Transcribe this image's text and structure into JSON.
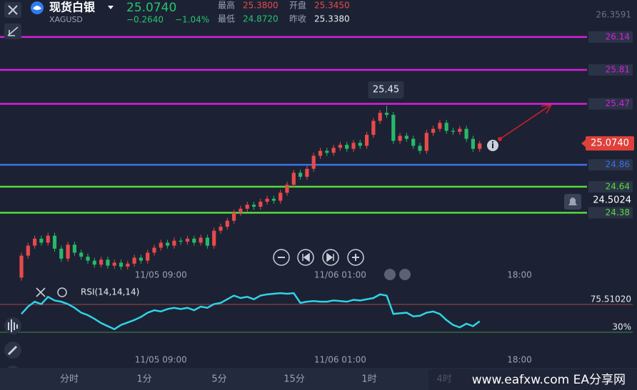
{
  "header": {
    "title": "现货白银",
    "symbol": "XAGUSD",
    "price": "25.0740",
    "change": "−0.2640",
    "change_pct": "−1.04%",
    "stats": [
      {
        "label": "最高",
        "value": "25.3800"
      },
      {
        "label": "开盘",
        "value": "25.3450"
      },
      {
        "label": "最低",
        "value": "24.8720"
      },
      {
        "label": "昨收",
        "value": "25.3380"
      }
    ]
  },
  "chart_data": {
    "type": "candlestick",
    "up_color": "#e84a4a",
    "down_color": "#27b86a",
    "ylim": [
      23.69,
      26.51
    ],
    "yticks": [
      26.3591
    ],
    "levels": [
      {
        "value": 26.14,
        "color": "#d91ee0"
      },
      {
        "value": 25.81,
        "color": "#d91ee0"
      },
      {
        "value": 25.47,
        "color": "#d91ee0"
      },
      {
        "value": 24.86,
        "color": "#3b72e8"
      },
      {
        "value": 24.64,
        "color": "#58dc3c"
      },
      {
        "value": 24.38,
        "color": "#58dc3c"
      }
    ],
    "last_price": {
      "value": 25.074,
      "label": "25.0740"
    },
    "alert_price": 24.5024,
    "xticks": [
      {
        "value": 21,
        "label": "11/05 09:00"
      },
      {
        "value": 48,
        "label": "11/06 01:00"
      },
      {
        "value": 75,
        "label": "18:00"
      }
    ],
    "open": [
      23.73,
      23.95,
      24.05,
      24.12,
      24.08,
      24.15,
      24.02,
      23.92,
      24.06,
      23.98,
      23.94,
      23.9,
      23.86,
      23.91,
      23.85,
      23.88,
      23.84,
      23.87,
      23.93,
      23.9,
      23.98,
      24.03,
      24.08,
      24.05,
      24.1,
      24.09,
      24.12,
      24.08,
      24.13,
      24.05,
      24.2,
      24.24,
      24.3,
      24.38,
      24.42,
      24.46,
      24.44,
      24.49,
      24.52,
      24.5,
      24.58,
      24.66,
      24.78,
      24.74,
      24.82,
      24.95,
      25.0,
      24.98,
      25.03,
      25.06,
      25.02,
      25.08,
      25.05,
      25.16,
      25.3,
      25.38,
      25.36,
      25.1,
      25.15,
      25.12,
      25.05,
      25.0,
      25.18,
      25.22,
      25.28,
      25.2,
      25.19,
      25.22,
      25.12,
      25.02
    ],
    "high": [
      23.98,
      24.08,
      24.15,
      24.15,
      24.18,
      24.18,
      24.05,
      24.09,
      24.09,
      24.01,
      23.97,
      23.93,
      23.94,
      23.94,
      23.91,
      23.91,
      23.9,
      23.96,
      23.96,
      24.01,
      24.06,
      24.11,
      24.11,
      24.13,
      24.13,
      24.15,
      24.15,
      24.16,
      24.16,
      24.23,
      24.27,
      24.33,
      24.41,
      24.45,
      24.49,
      24.49,
      24.52,
      24.55,
      24.55,
      24.61,
      24.69,
      24.81,
      24.81,
      24.85,
      24.98,
      25.03,
      25.03,
      25.06,
      25.09,
      25.09,
      25.11,
      25.11,
      25.19,
      25.33,
      25.41,
      25.45,
      25.39,
      25.18,
      25.18,
      25.15,
      25.08,
      25.21,
      25.25,
      25.31,
      25.31,
      25.23,
      25.25,
      25.25,
      25.15,
      25.1
    ],
    "low": [
      23.7,
      23.92,
      24.02,
      24.05,
      24.05,
      23.99,
      23.89,
      23.89,
      23.95,
      23.91,
      23.87,
      23.83,
      23.83,
      23.82,
      23.82,
      23.81,
      23.81,
      23.84,
      23.87,
      23.87,
      23.95,
      24.0,
      24.02,
      24.02,
      24.06,
      24.06,
      24.05,
      24.05,
      24.02,
      24.02,
      24.17,
      24.21,
      24.27,
      24.35,
      24.39,
      24.41,
      24.41,
      24.46,
      24.47,
      24.47,
      24.55,
      24.63,
      24.71,
      24.71,
      24.79,
      24.92,
      24.95,
      24.95,
      25.0,
      24.99,
      24.99,
      25.02,
      25.02,
      25.13,
      25.27,
      25.33,
      25.07,
      25.07,
      25.09,
      25.02,
      24.97,
      24.97,
      25.15,
      25.19,
      25.17,
      25.16,
      25.16,
      25.09,
      24.99,
      24.99
    ],
    "close": [
      23.95,
      24.05,
      24.12,
      24.08,
      24.15,
      24.02,
      23.92,
      24.06,
      23.98,
      23.94,
      23.9,
      23.86,
      23.91,
      23.85,
      23.88,
      23.84,
      23.87,
      23.93,
      23.9,
      23.98,
      24.03,
      24.08,
      24.05,
      24.1,
      24.09,
      24.12,
      24.08,
      24.13,
      24.05,
      24.2,
      24.24,
      24.3,
      24.38,
      24.42,
      24.46,
      24.44,
      24.49,
      24.52,
      24.5,
      24.58,
      24.66,
      24.78,
      24.74,
      24.82,
      24.95,
      25.0,
      24.98,
      25.03,
      25.06,
      25.02,
      25.08,
      25.05,
      25.16,
      25.3,
      25.38,
      25.36,
      25.1,
      25.15,
      25.12,
      25.05,
      25.0,
      25.18,
      25.22,
      25.28,
      25.2,
      25.19,
      25.22,
      25.12,
      25.02,
      25.074
    ],
    "rsi": {
      "title": "RSI(14,14,14)",
      "color": "#2fd3e8",
      "ylim": [
        2,
        107
      ],
      "levels": [
        {
          "value": 75.5102,
          "label": "75.51020",
          "color": "#a04a4a"
        },
        {
          "value": 30,
          "label": "30%",
          "color": "#3f8a48"
        }
      ],
      "values": [
        60,
        72,
        80,
        76,
        88,
        82,
        80,
        76,
        70,
        62,
        58,
        52,
        45,
        40,
        35,
        42,
        46,
        50,
        55,
        62,
        66,
        64,
        68,
        70,
        68,
        70,
        66,
        72,
        70,
        76,
        78,
        84,
        90,
        86,
        88,
        84,
        90,
        92,
        93,
        94,
        93,
        94,
        78,
        80,
        81,
        80,
        80,
        82,
        81,
        80,
        83,
        82,
        84,
        86,
        92,
        90,
        60,
        61,
        62,
        56,
        57,
        62,
        64,
        60,
        50,
        42,
        38,
        44,
        40,
        48
      ]
    }
  },
  "toolbar": [
    "分时",
    "1分",
    "5分",
    "15分",
    "1时",
    "4时"
  ],
  "watermark": "www.eafxw.com  EA分享网"
}
